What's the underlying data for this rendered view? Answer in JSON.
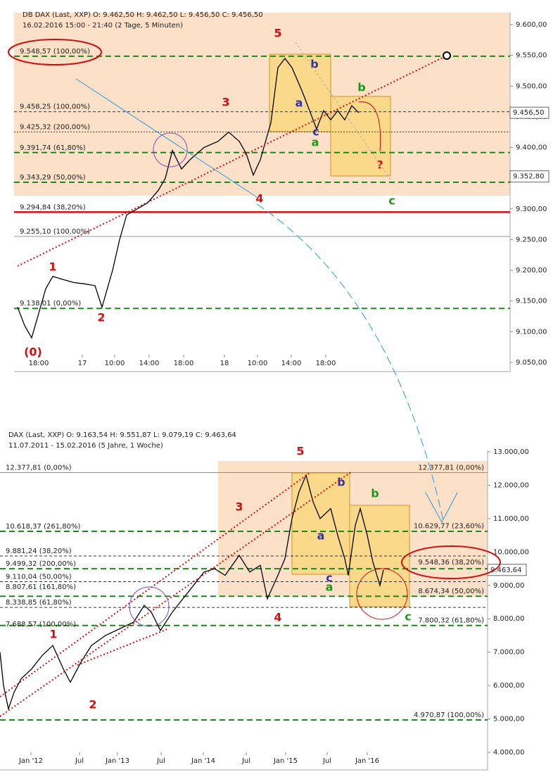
{
  "chart_data": [
    {
      "type": "line",
      "title": "DB DAX (Last, XXP)  O: 9.462,50  H: 9.462,50  L: 9.456,50  C: 9.456,50",
      "subtitle": "16.02.2016 15:00 - 21:40 (2 Tage, 5 Minuten)",
      "xlim": [
        0,
        700
      ],
      "ylim": [
        9050,
        9600
      ],
      "xticks": [
        {
          "value": 35,
          "label": "18:00"
        },
        {
          "value": 97,
          "label": "17"
        },
        {
          "value": 143,
          "label": "10:00"
        },
        {
          "value": 192,
          "label": "14:00"
        },
        {
          "value": 241,
          "label": "18:00"
        },
        {
          "value": 299,
          "label": "18"
        },
        {
          "value": 346,
          "label": "10:00"
        },
        {
          "value": 394,
          "label": "14:00"
        },
        {
          "value": 443,
          "label": "18:00"
        }
      ],
      "yticks": [
        {
          "value": 9600,
          "label": "9.600,00"
        },
        {
          "value": 9550,
          "label": "9.550,00"
        },
        {
          "value": 9500,
          "label": "9.500,00"
        },
        {
          "value": 9450,
          "label": "9.450,00"
        },
        {
          "value": 9400,
          "label": "9.400,00"
        },
        {
          "value": 9350,
          "label": "9.350,00"
        },
        {
          "value": 9300,
          "label": "9.300,00"
        },
        {
          "value": 9250,
          "label": "9.250,00"
        },
        {
          "value": 9200,
          "label": "9.200,00"
        },
        {
          "value": 9150,
          "label": "9.150,00"
        },
        {
          "value": 9100,
          "label": "9.100,00"
        },
        {
          "value": 9050,
          "label": "9.050,00"
        }
      ],
      "series": [
        {
          "name": "DB DAX",
          "color": "#000000",
          "x": [
            5,
            15,
            25,
            35,
            45,
            55,
            70,
            85,
            100,
            115,
            125,
            140,
            150,
            160,
            175,
            190,
            205,
            215,
            225,
            238,
            250,
            270,
            290,
            305,
            320,
            330,
            340,
            350,
            365,
            375,
            385,
            395,
            410,
            420,
            430,
            440,
            450,
            460,
            470,
            480,
            490
          ],
          "values": [
            9140,
            9110,
            9090,
            9130,
            9170,
            9190,
            9185,
            9180,
            9178,
            9175,
            9140,
            9200,
            9250,
            9290,
            9300,
            9310,
            9330,
            9350,
            9395,
            9365,
            9380,
            9400,
            9410,
            9425,
            9410,
            9390,
            9355,
            9380,
            9440,
            9530,
            9545,
            9530,
            9490,
            9460,
            9430,
            9460,
            9445,
            9460,
            9445,
            9468,
            9456.5
          ]
        }
      ],
      "levels": [
        {
          "value": 9548.57,
          "label": "9.548,57 (100,00%)",
          "side": "left",
          "style": "green"
        },
        {
          "value": 9458.25,
          "label": "9.458,25 (100,00%)",
          "side": "left",
          "style": "black"
        },
        {
          "value": 9425.32,
          "label": "9.425,32 (200,00%)",
          "side": "left",
          "style": "brown"
        },
        {
          "value": 9391.74,
          "label": "9.391,74 (61,80%)",
          "side": "left",
          "style": "green"
        },
        {
          "value": 9343.29,
          "label": "9.343,29 (50,00%)",
          "side": "left",
          "style": "green"
        },
        {
          "value": 9294.84,
          "label": "9.294,84 (38,20%)",
          "side": "left",
          "style": "red"
        },
        {
          "value": 9255.1,
          "label": "9.255,10 (100,00%)",
          "side": "left",
          "style": "gray"
        },
        {
          "value": 9138.01,
          "label": "9.138,01 (0,00%)",
          "side": "left",
          "style": "green"
        }
      ],
      "price_labels": [
        {
          "value": 9456.5,
          "label": "9.456,50"
        },
        {
          "value": 9352.8,
          "label": "9.352,80"
        }
      ],
      "annotations": [
        {
          "text": "5",
          "color": "#d01010"
        },
        {
          "text": "3",
          "color": "#d01010"
        },
        {
          "text": "4",
          "color": "#d01010"
        },
        {
          "text": "1",
          "color": "#d01010"
        },
        {
          "text": "2",
          "color": "#d01010"
        },
        {
          "text": "(0)",
          "color": "#d01010"
        },
        {
          "text": "a",
          "color": "#3030b0"
        },
        {
          "text": "b",
          "color": "#3030b0"
        },
        {
          "text": "c",
          "color": "#3030b0"
        },
        {
          "text": "a",
          "color": "#1a9a1a"
        },
        {
          "text": "b",
          "color": "#1a9a1a"
        },
        {
          "text": "c",
          "color": "#1a9a1a"
        },
        {
          "text": "?",
          "color": "#d01010"
        }
      ]
    },
    {
      "type": "line",
      "title": "DAX (Last, XXP)  O: 9.163,54  H: 9.551,87  L: 9.079,19  C: 9.463,64",
      "subtitle": "11.07.2011 - 15.02.2016 (5 Jahre, 1 Woche)",
      "xlim": [
        0,
        690
      ],
      "ylim": [
        4000,
        13000
      ],
      "xticks": [
        {
          "value": 44,
          "label": "Jan '12"
        },
        {
          "value": 113,
          "label": "Jul"
        },
        {
          "value": 167,
          "label": "Jan '13"
        },
        {
          "value": 229,
          "label": "Jul"
        },
        {
          "value": 289,
          "label": "Jan '14"
        },
        {
          "value": 350,
          "label": "Jul"
        },
        {
          "value": 406,
          "label": "Jan '15"
        },
        {
          "value": 465,
          "label": "Jul"
        },
        {
          "value": 522,
          "label": "Jan '16"
        }
      ],
      "yticks": [
        {
          "value": 13000,
          "label": "13.000,00"
        },
        {
          "value": 12000,
          "label": "12.000,00"
        },
        {
          "value": 11000,
          "label": "11.000,00"
        },
        {
          "value": 10000,
          "label": "10.000,00"
        },
        {
          "value": 9000,
          "label": "9.000,00"
        },
        {
          "value": 8000,
          "label": "8.000,00"
        },
        {
          "value": 7000,
          "label": "7.000,00"
        },
        {
          "value": 6000,
          "label": "6.000,00"
        },
        {
          "value": 5000,
          "label": "5.000,00"
        },
        {
          "value": 4000,
          "label": "4.000,00"
        }
      ],
      "series": [
        {
          "name": "DAX",
          "color": "#000000",
          "x": [
            0,
            5,
            12,
            20,
            30,
            45,
            60,
            75,
            90,
            100,
            115,
            130,
            150,
            170,
            190,
            205,
            215,
            228,
            245,
            260,
            275,
            290,
            305,
            320,
            340,
            355,
            370,
            380,
            395,
            405,
            415,
            425,
            435,
            445,
            455,
            470,
            480,
            490,
            495,
            505,
            512,
            522,
            530,
            540,
            545
          ],
          "values": [
            7000,
            6000,
            5300,
            5800,
            6200,
            6500,
            6900,
            7200,
            6500,
            6100,
            6700,
            7200,
            7500,
            7700,
            7900,
            8400,
            8200,
            7650,
            8200,
            8600,
            9000,
            9400,
            9500,
            9300,
            9900,
            9400,
            9600,
            8600,
            9300,
            9800,
            11000,
            11800,
            12300,
            11500,
            11000,
            11300,
            10500,
            9800,
            9300,
            10800,
            11300,
            10500,
            9700,
            9000,
            9463.64
          ]
        }
      ],
      "levels": [
        {
          "value": 12377.81,
          "label": "12.377,81 (0,00%)",
          "side": "left",
          "style": "olive"
        },
        {
          "value": 12377.81,
          "label": "12.377,81 (0,00%)",
          "side": "right",
          "style": "olive"
        },
        {
          "value": 10618.37,
          "label": "10.618,37 (261,80%)",
          "side": "left",
          "style": "green"
        },
        {
          "value": 10629.77,
          "label": "10.629,77 (23,60%)",
          "side": "right",
          "style": "none"
        },
        {
          "value": 9881.24,
          "label": "9.881,24 (38,20%)",
          "side": "left",
          "style": "black"
        },
        {
          "value": 9499.32,
          "label": "9.499,32 (200,00%)",
          "side": "left",
          "style": "green"
        },
        {
          "value": 9548.36,
          "label": "9.548,36 (38,20%)",
          "side": "right",
          "style": "none"
        },
        {
          "value": 9110.04,
          "label": "9.110,04 (50,00%)",
          "side": "left",
          "style": "black"
        },
        {
          "value": 8807.61,
          "label": "8.807,61 (161,80%)",
          "side": "left",
          "style": "none"
        },
        {
          "value": 8674.34,
          "label": "8.674,34 (50,00%)",
          "side": "right",
          "style": "green"
        },
        {
          "value": 8338.85,
          "label": "8.338,85 (61,80%)",
          "side": "left",
          "style": "black"
        },
        {
          "value": 7800.32,
          "label": "7.800,32 (61,80%)",
          "side": "right",
          "style": "green"
        },
        {
          "value": 7688.57,
          "label": "7.688,57 (100,00%)",
          "side": "left",
          "style": "none"
        },
        {
          "value": 4970.87,
          "label": "4.970,87 (100,00%)",
          "side": "right",
          "style": "green"
        }
      ],
      "price_labels": [
        {
          "value": 9463.64,
          "label": "9.463,64"
        }
      ],
      "annotations": [
        {
          "text": "5",
          "color": "#d01010"
        },
        {
          "text": "3",
          "color": "#d01010"
        },
        {
          "text": "4",
          "color": "#d01010"
        },
        {
          "text": "1",
          "color": "#d01010"
        },
        {
          "text": "2",
          "color": "#d01010"
        },
        {
          "text": "a",
          "color": "#3030b0"
        },
        {
          "text": "b",
          "color": "#3030b0"
        },
        {
          "text": "c",
          "color": "#3030b0"
        },
        {
          "text": "a",
          "color": "#1a9a1a"
        },
        {
          "text": "b",
          "color": "#1a9a1a"
        },
        {
          "text": "c",
          "color": "#1a9a1a"
        }
      ]
    }
  ]
}
